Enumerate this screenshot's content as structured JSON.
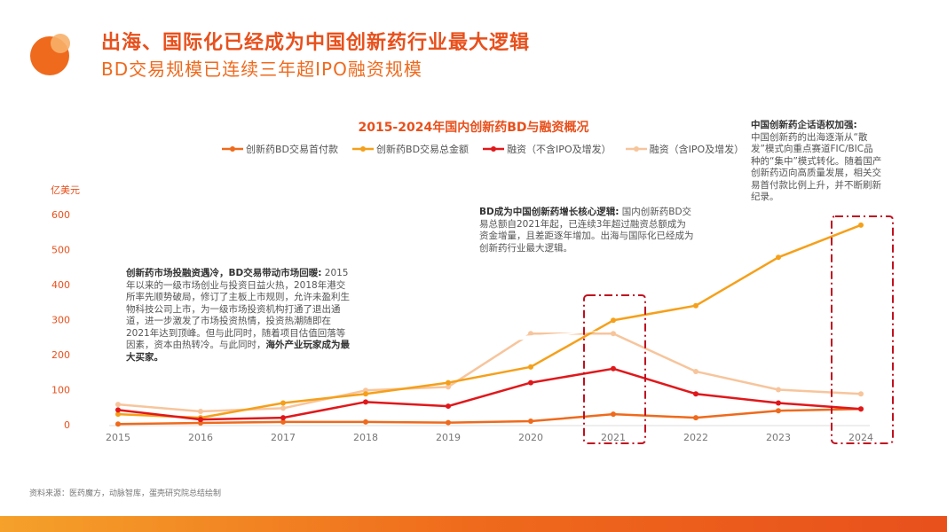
{
  "header": {
    "title": "出海、国际化已经成为中国创新药行业最大逻辑",
    "subtitle": "BD交易规模已连续三年超IPO融资规模"
  },
  "annotations": {
    "note1_bold": "创新药市场投融资遇冷，BD交易带动市场回暖:",
    "note1_body": "2015年以来的一级市场创业与投资日益火热，2018年港交所率先顺势破局，修订了主板上市规则，允许未盈利生物科技公司上市，为一级市场投资机构打通了退出通道，进一步激发了市场投资热情，投资热潮随即在2021年达到顶峰。但与此同时，随着项目估值回落等因素，资本由热转冷。与此同时，",
    "note1_end": "海外产业玩家成为最大买家。",
    "note2_bold": "BD成为中国创新药增长核心逻辑:",
    "note2_body": "国内创新药BD交易总额自2021年起，已连续3年超过融资总额成为资金增量，且差距逐年增加。出海与国际化已经成为创新药行业最大逻辑。",
    "note3_bold": "中国创新药企话语权加强:",
    "note3_body": "中国创新药的出海逐渐从“散发”模式向重点赛道FIC/BIC品种的“集中”模式转化。随着国产创新药迈向高质量发展，相关交易首付款比例上升，并不断刷新纪录。"
  },
  "source": "资料来源：医药魔方，动脉智库，蛋壳研究院总结绘制",
  "colors": {
    "accent": "#e8501c",
    "upfront": "#ef6a1c",
    "total": "#f5a01a",
    "financing_ex": "#e0181b",
    "financing_inc": "#f7c59c",
    "highlight_box": "#c01020"
  },
  "chart_data": {
    "type": "line",
    "title": "2015-2024年国内创新药BD与融资概况",
    "ylabel": "亿美元",
    "xlabel": "",
    "ylim": [
      0,
      600
    ],
    "yticks": [
      0,
      100,
      200,
      300,
      400,
      500,
      600
    ],
    "categories": [
      "2015",
      "2016",
      "2017",
      "2018",
      "2019",
      "2020",
      "2021",
      "2022",
      "2023",
      "2024"
    ],
    "series": [
      {
        "name": "创新药BD交易首付款",
        "color": "#ef6a1c",
        "values": [
          2,
          5,
          8,
          8,
          6,
          10,
          30,
          20,
          40,
          45
        ]
      },
      {
        "name": "创新药BD交易总金额",
        "color": "#f5a01a",
        "values": [
          30,
          20,
          62,
          88,
          120,
          165,
          298,
          340,
          478,
          570
        ]
      },
      {
        "name": "融资（不含IPO及增发）",
        "color": "#e0181b",
        "values": [
          42,
          15,
          20,
          65,
          53,
          120,
          160,
          88,
          62,
          45
        ]
      },
      {
        "name": "融资（含IPO及增发）",
        "color": "#f7c59c",
        "values": [
          58,
          38,
          47,
          98,
          108,
          260,
          260,
          152,
          100,
          88
        ]
      }
    ],
    "highlight_years": [
      "2021",
      "2024"
    ],
    "grid": false,
    "legend_position": "top"
  }
}
